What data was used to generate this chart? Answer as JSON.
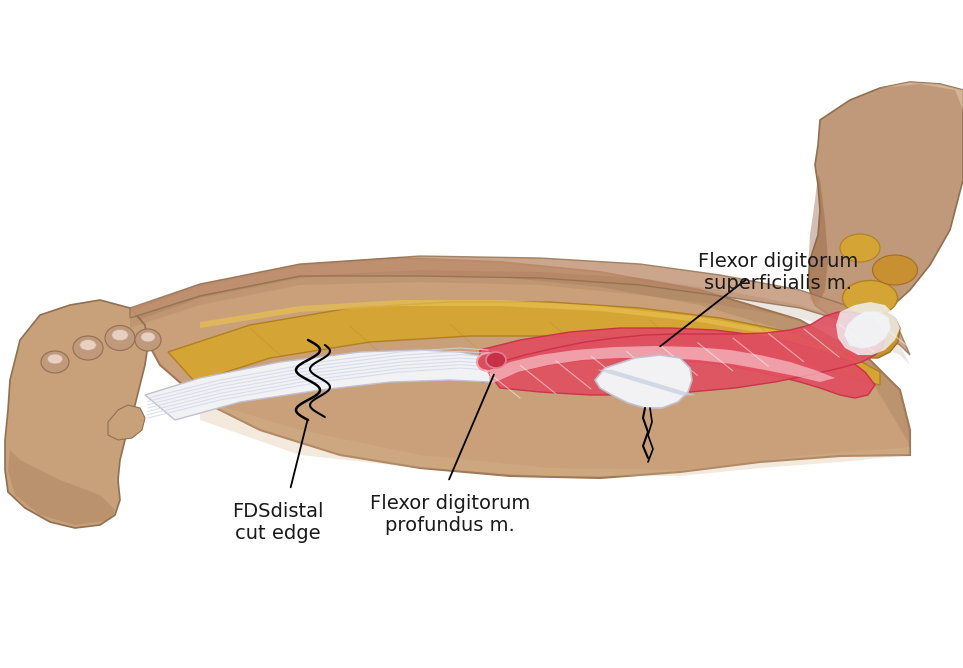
{
  "background_color": "#ffffff",
  "figsize": [
    9.63,
    6.68
  ],
  "dpi": 100,
  "labels": {
    "fds_cut": "FDSdistal\ncut edge",
    "fdp": "Flexor digitorum\nprofundus m.",
    "fds_muscle": "Flexor digitorum\nsuperficialis m."
  },
  "skin_light": "#D4AA88",
  "skin_mid": "#C49878",
  "skin_dark": "#B08060",
  "bone_color": "#D4A040",
  "bone_light": "#E8C060",
  "muscle_red": "#E05565",
  "muscle_pink": "#F0A0A8",
  "muscle_light": "#F8C8CC",
  "tendon_white": "#F5F5F8",
  "tendon_blue": "#C8D8E8",
  "text_color": "#1a1a1a"
}
